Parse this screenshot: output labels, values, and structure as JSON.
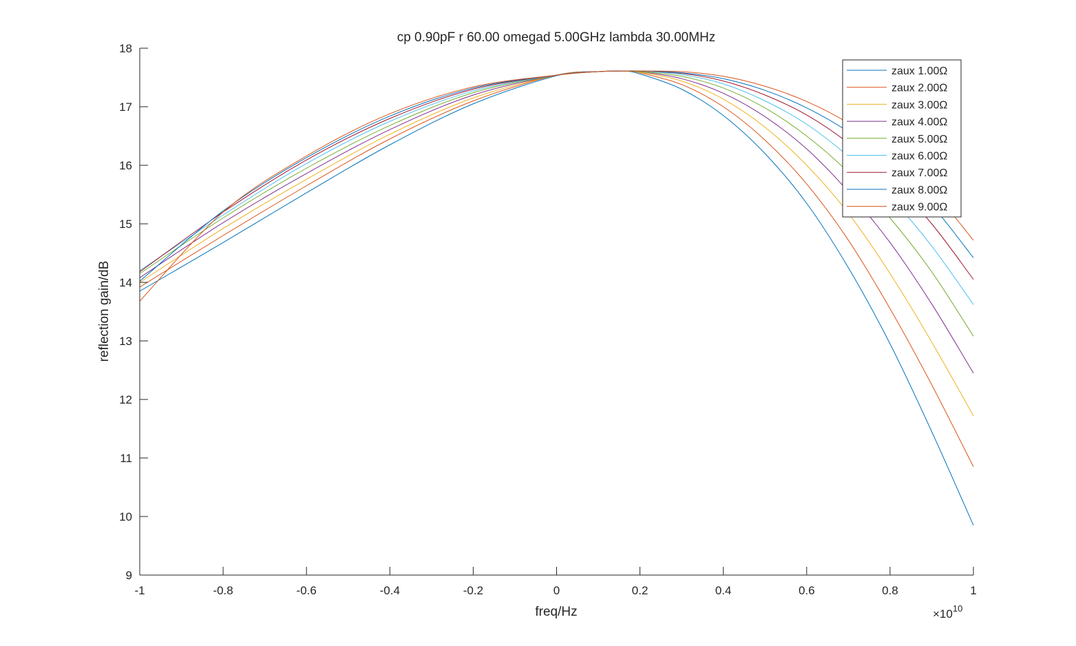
{
  "chart_data": {
    "type": "line",
    "title": "cp 0.90pF r 60.00 omegad 5.00GHz lambda 30.00MHz",
    "xlabel": "freq/Hz",
    "ylabel": "reflection gain/dB",
    "x_exponent_label": "×10",
    "x_exponent_power": "10",
    "xlim": [
      -1,
      1
    ],
    "ylim": [
      9,
      18
    ],
    "x_ticks": [
      -1,
      -0.8,
      -0.6,
      -0.4,
      -0.2,
      0,
      0.2,
      0.4,
      0.6,
      0.8,
      1
    ],
    "x_tick_labels": [
      "-1",
      "-0.8",
      "-0.6",
      "-0.4",
      "-0.2",
      "0",
      "0.2",
      "0.4",
      "0.6",
      "0.8",
      "1"
    ],
    "y_ticks": [
      9,
      10,
      11,
      12,
      13,
      14,
      15,
      16,
      17,
      18
    ],
    "y_tick_labels": [
      "9",
      "10",
      "11",
      "12",
      "13",
      "14",
      "15",
      "16",
      "17",
      "18"
    ],
    "grid": false,
    "legend_position": "top-right",
    "x": [
      -1.0,
      -0.8,
      -0.6,
      -0.4,
      -0.2,
      0.0,
      0.1,
      0.16,
      0.2,
      0.3,
      0.4,
      0.5,
      0.6,
      0.7,
      0.8,
      0.9,
      1.0
    ],
    "series": [
      {
        "name": "zaux 1.00Ω",
        "color": "#0072BD",
        "values": [
          13.85,
          14.68,
          15.53,
          16.35,
          17.05,
          17.53,
          17.6,
          17.61,
          17.56,
          17.3,
          16.85,
          16.2,
          15.35,
          14.25,
          12.95,
          11.45,
          9.85
        ]
      },
      {
        "name": "zaux 2.00Ω",
        "color": "#D95319",
        "values": [
          13.92,
          14.8,
          15.65,
          16.45,
          17.1,
          17.54,
          17.6,
          17.61,
          17.58,
          17.38,
          17.0,
          16.43,
          15.68,
          14.72,
          13.55,
          12.25,
          10.85
        ]
      },
      {
        "name": "zaux 3.00Ω",
        "color": "#EDB120",
        "values": [
          14.0,
          14.92,
          15.76,
          16.53,
          17.15,
          17.54,
          17.6,
          17.61,
          17.59,
          17.44,
          17.13,
          16.65,
          16.0,
          15.18,
          14.15,
          12.98,
          11.72
        ]
      },
      {
        "name": "zaux 4.00Ω",
        "color": "#7E2F8E",
        "values": [
          14.08,
          15.02,
          15.86,
          16.61,
          17.2,
          17.54,
          17.6,
          17.61,
          17.6,
          17.48,
          17.23,
          16.83,
          16.28,
          15.55,
          14.68,
          13.63,
          12.45
        ]
      },
      {
        "name": "zaux 5.00Ω",
        "color": "#77AC30",
        "values": [
          14.15,
          15.1,
          15.95,
          16.68,
          17.24,
          17.54,
          17.6,
          17.61,
          17.6,
          17.52,
          17.32,
          16.98,
          16.5,
          15.88,
          15.1,
          14.18,
          13.08
        ]
      },
      {
        "name": "zaux 6.00Ω",
        "color": "#4DBEEE",
        "values": [
          14.2,
          15.15,
          16.03,
          16.75,
          17.27,
          17.54,
          17.6,
          17.61,
          17.61,
          17.55,
          17.39,
          17.1,
          16.7,
          16.15,
          15.46,
          14.62,
          13.62
        ]
      },
      {
        "name": "zaux 7.00Ω",
        "color": "#A2142F",
        "values": [
          14.18,
          15.2,
          16.09,
          16.8,
          17.3,
          17.54,
          17.6,
          17.61,
          17.61,
          17.57,
          17.44,
          17.2,
          16.86,
          16.38,
          15.76,
          15.0,
          14.05
        ]
      },
      {
        "name": "zaux 8.00Ω",
        "color": "#0072BD",
        "values": [
          14.02,
          15.22,
          16.13,
          16.84,
          17.32,
          17.54,
          17.6,
          17.61,
          17.61,
          17.58,
          17.48,
          17.28,
          16.98,
          16.57,
          16.01,
          15.32,
          14.42
        ]
      },
      {
        "name": "zaux 9.00Ω",
        "color": "#D95319",
        "values": [
          13.68,
          15.2,
          16.16,
          16.88,
          17.34,
          17.54,
          17.6,
          17.61,
          17.61,
          17.6,
          17.52,
          17.35,
          17.09,
          16.72,
          16.22,
          15.58,
          14.72
        ]
      }
    ]
  }
}
